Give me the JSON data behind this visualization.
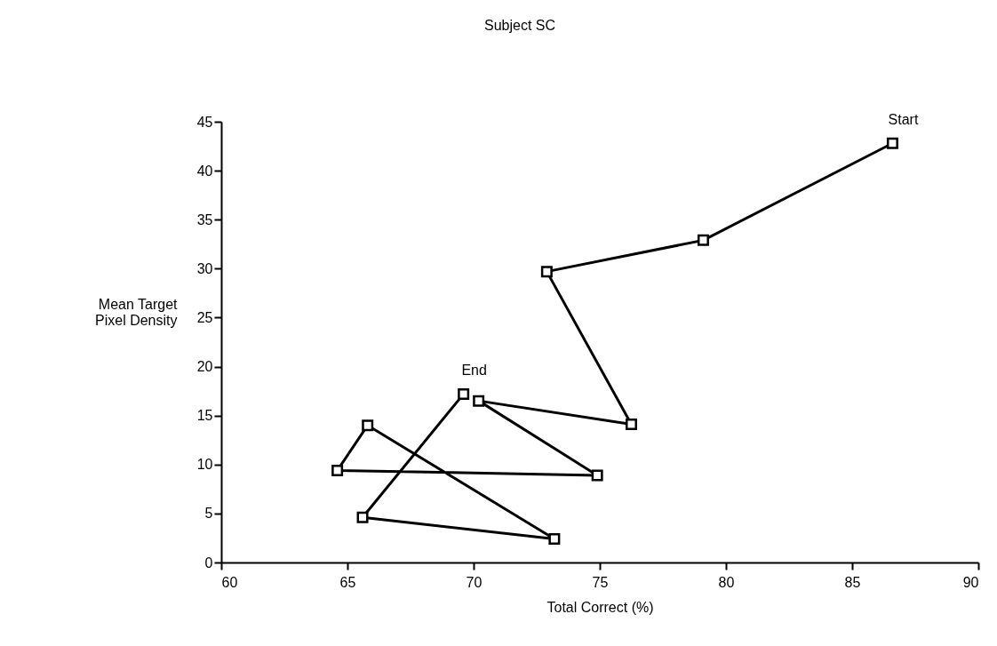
{
  "chart_data": {
    "type": "line",
    "title": "Subject SC",
    "xlabel": "Total Correct (%)",
    "ylabel": "Mean Target Pixel Density",
    "x": [
      86.6,
      79.1,
      72.9,
      76.25,
      70.2,
      74.9,
      64.6,
      65.8,
      73.2,
      65.6,
      69.6
    ],
    "series": [
      {
        "color": "#000000",
        "values": [
          42.8,
          32.9,
          29.7,
          14.1,
          16.5,
          8.9,
          9.4,
          14.0,
          2.4,
          4.6,
          17.2
        ]
      }
    ],
    "marker": "square",
    "line_style": "solid",
    "xlim": [
      60,
      90
    ],
    "xticks": [
      60,
      65,
      70,
      75,
      80,
      85,
      90
    ],
    "ylim": [
      0,
      45
    ],
    "yticks": [
      0,
      5,
      10,
      15,
      20,
      25,
      30,
      35,
      40,
      45
    ],
    "grid": false,
    "annotations": [
      {
        "text": "Start",
        "x": 86.6,
        "y": 42.8
      },
      {
        "text": "End",
        "x": 69.6,
        "y": 17.2
      }
    ]
  }
}
